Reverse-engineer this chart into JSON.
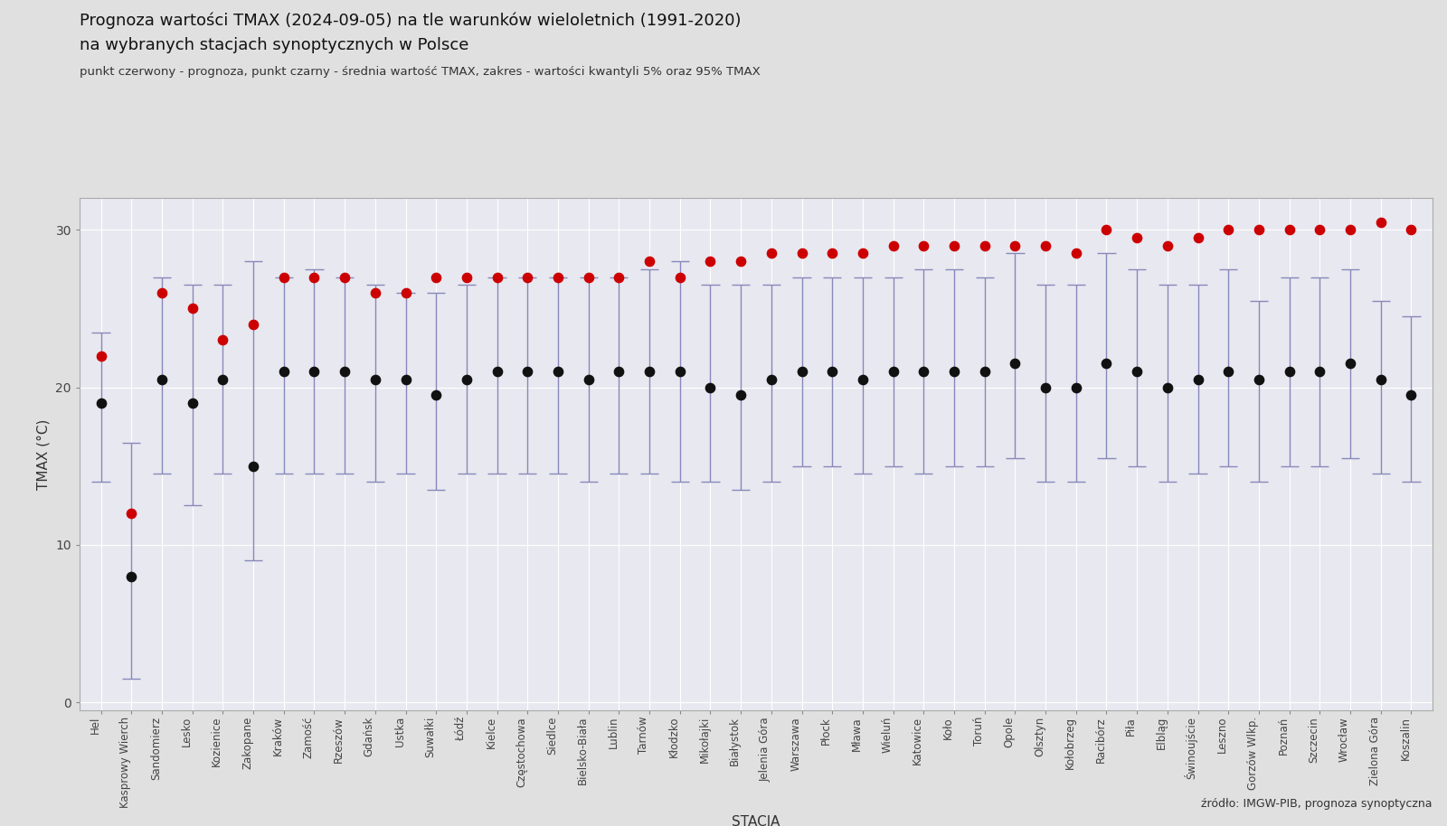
{
  "title_line1": "Prognoza wartości TMAX (2024-09-05) na tle warunków wieloletnich (1991-2020)",
  "title_line2": "na wybranych stacjach synoptycznych w Polsce",
  "subtitle": "punkt czerwony - prognoza, punkt czarny - średnia wartość TMAX, zakres - wartości kwantyli 5% oraz 95% TMAX",
  "xlabel": "STACJA",
  "ylabel": "TMAX (°C)",
  "source": "źródło: IMGW-PIB, prognoza synoptyczna",
  "bg_fig": "#e0e0e0",
  "bg_ax": "#e8e8f0",
  "stations": [
    "Hel",
    "Kasprowy Wierch",
    "Sandomierz",
    "Lesko",
    "Kozienice",
    "Zakopane",
    "Kraków",
    "Zamość",
    "Rzeszów",
    "Gdańsk",
    "Ustka",
    "Suwałki",
    "Łódź",
    "Kielce",
    "Częstochowa",
    "Siedlce",
    "Bielsko-Biała",
    "Lublin",
    "Tarnów",
    "Kłodzko",
    "Mikołajki",
    "Białystok",
    "Jelenia Góra",
    "Warszawa",
    "Płock",
    "Mława",
    "Wieluń",
    "Katowice",
    "Koło",
    "Toruń",
    "Opole",
    "Olsztyn",
    "Kołobrzeg",
    "Racibórz",
    "Piła",
    "Elbląg",
    "Świnoujście",
    "Leszno",
    "Gorzów Wlkp.",
    "Poznań",
    "Szczecin",
    "Wrocław",
    "Zielona Góra",
    "Koszalin"
  ],
  "forecast": [
    22.0,
    12.0,
    26.0,
    25.0,
    23.0,
    24.0,
    27.0,
    27.0,
    27.0,
    26.0,
    26.0,
    27.0,
    27.0,
    27.0,
    27.0,
    27.0,
    27.0,
    27.0,
    28.0,
    27.0,
    28.0,
    28.0,
    28.5,
    28.5,
    28.5,
    28.5,
    29.0,
    29.0,
    29.0,
    29.0,
    29.0,
    29.0,
    28.5,
    30.0,
    29.5,
    29.0,
    29.5,
    30.0,
    30.0,
    30.0,
    30.0,
    30.0,
    30.5,
    30.0
  ],
  "mean": [
    19.0,
    8.0,
    20.5,
    19.0,
    20.5,
    15.0,
    21.0,
    21.0,
    21.0,
    20.5,
    20.5,
    19.5,
    20.5,
    21.0,
    21.0,
    21.0,
    20.5,
    21.0,
    21.0,
    21.0,
    20.0,
    19.5,
    20.5,
    21.0,
    21.0,
    20.5,
    21.0,
    21.0,
    21.0,
    21.0,
    21.5,
    20.0,
    20.0,
    21.5,
    21.0,
    20.0,
    20.5,
    21.0,
    20.5,
    21.0,
    21.0,
    21.5,
    20.5,
    19.5
  ],
  "q05": [
    14.0,
    1.5,
    14.5,
    12.5,
    14.5,
    9.0,
    14.5,
    14.5,
    14.5,
    14.0,
    14.5,
    13.5,
    14.5,
    14.5,
    14.5,
    14.5,
    14.0,
    14.5,
    14.5,
    14.0,
    14.0,
    13.5,
    14.0,
    15.0,
    15.0,
    14.5,
    15.0,
    14.5,
    15.0,
    15.0,
    15.5,
    14.0,
    14.0,
    15.5,
    15.0,
    14.0,
    14.5,
    15.0,
    14.0,
    15.0,
    15.0,
    15.5,
    14.5,
    14.0
  ],
  "q95": [
    23.5,
    16.5,
    27.0,
    26.5,
    26.5,
    28.0,
    27.0,
    27.5,
    27.0,
    26.5,
    26.0,
    26.0,
    26.5,
    27.0,
    27.0,
    27.0,
    27.0,
    27.0,
    27.5,
    28.0,
    26.5,
    26.5,
    26.5,
    27.0,
    27.0,
    27.0,
    27.0,
    27.5,
    27.5,
    27.0,
    28.5,
    26.5,
    26.5,
    28.5,
    27.5,
    26.5,
    26.5,
    27.5,
    25.5,
    27.0,
    27.0,
    27.5,
    25.5,
    24.5
  ],
  "error_color": "#8888bb",
  "forecast_color": "#cc0000",
  "mean_color": "#111111",
  "ylim": [
    -0.5,
    32
  ],
  "yticks": [
    0,
    10,
    20,
    30
  ],
  "grid_color": "#ffffff",
  "spine_color": "#aaaaaa"
}
